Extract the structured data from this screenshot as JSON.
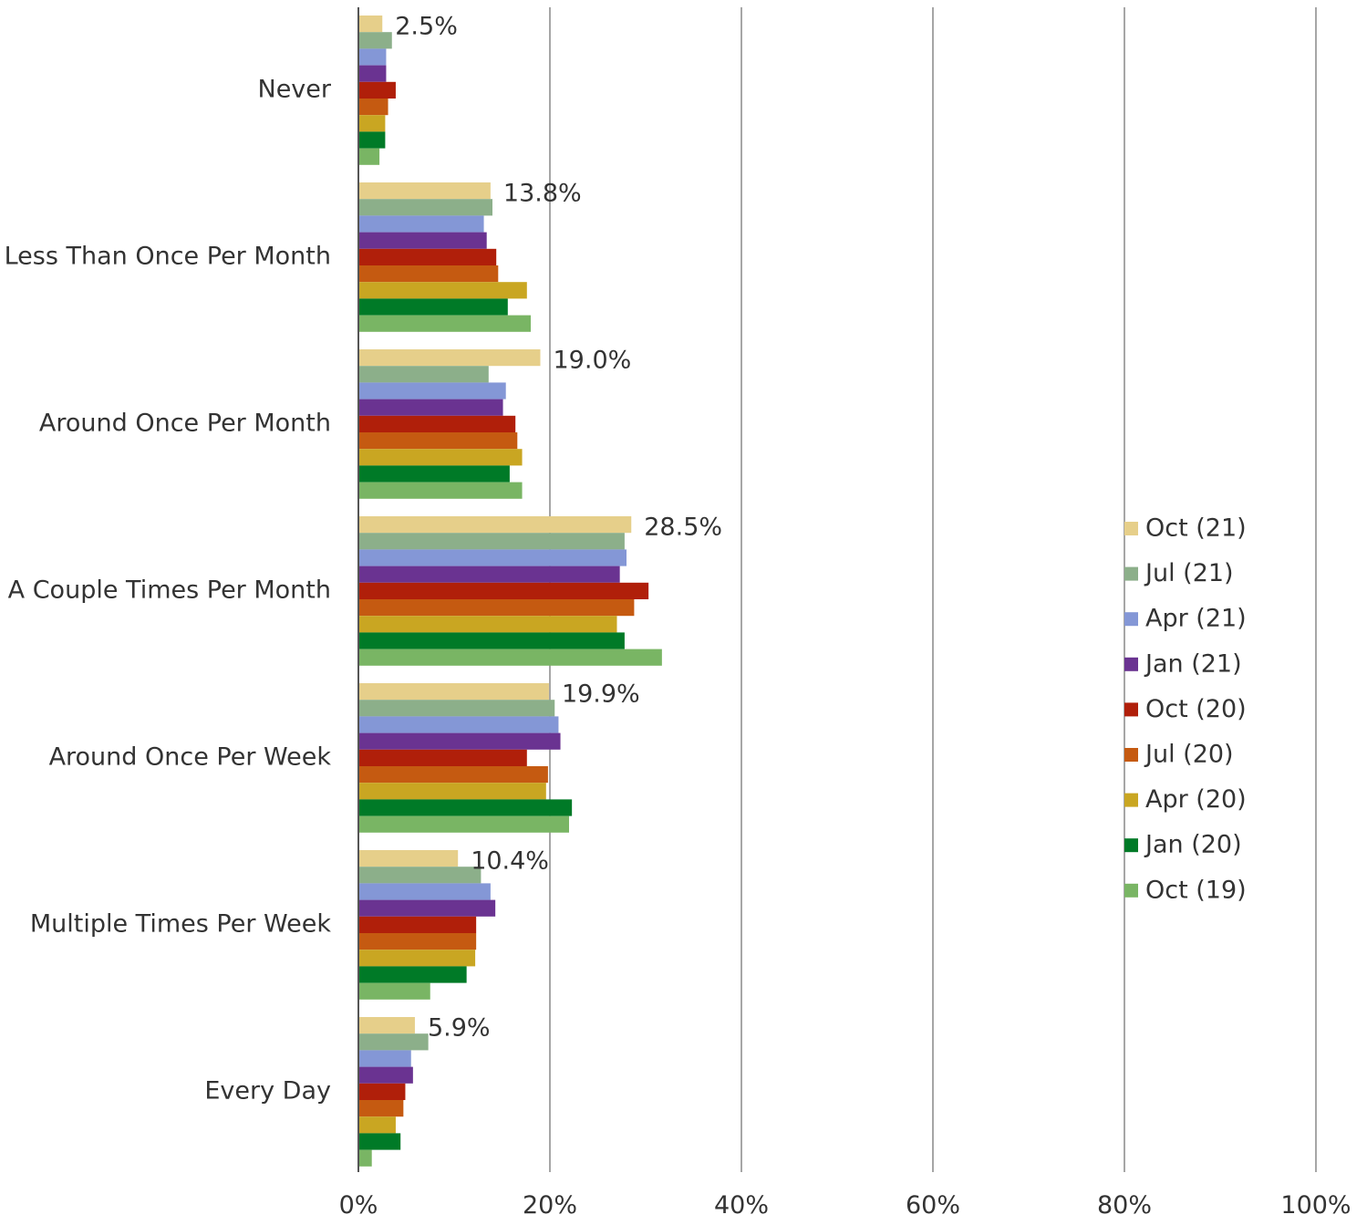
{
  "chart_data": {
    "type": "bar",
    "orientation": "horizontal",
    "categories": [
      "Never",
      "Less Than Once Per Month",
      "Around Once Per Month",
      "A Couple Times Per Month",
      "Around Once Per Week",
      "Multiple Times Per Week",
      "Every Day"
    ],
    "series": [
      {
        "name": "Oct (21)",
        "color": "#e6cf8a",
        "values": [
          2.5,
          13.8,
          19.0,
          28.5,
          19.9,
          10.4,
          5.9
        ]
      },
      {
        "name": "Jul (21)",
        "color": "#8caf8a",
        "values": [
          3.5,
          14.0,
          13.6,
          27.8,
          20.5,
          12.8,
          7.3
        ]
      },
      {
        "name": "Apr (21)",
        "color": "#8497d6",
        "values": [
          2.9,
          13.1,
          15.4,
          28.0,
          20.9,
          13.8,
          5.5
        ]
      },
      {
        "name": "Jan (21)",
        "color": "#6a3391",
        "values": [
          2.9,
          13.4,
          15.1,
          27.3,
          21.1,
          14.3,
          5.7
        ]
      },
      {
        "name": "Oct (20)",
        "color": "#b01f0a",
        "values": [
          3.9,
          14.4,
          16.4,
          30.3,
          17.6,
          12.3,
          4.9
        ]
      },
      {
        "name": "Jul (20)",
        "color": "#c55a11",
        "values": [
          3.1,
          14.6,
          16.6,
          28.8,
          19.8,
          12.3,
          4.7
        ]
      },
      {
        "name": "Apr (20)",
        "color": "#c9a622",
        "values": [
          2.8,
          17.6,
          17.1,
          27.0,
          19.6,
          12.2,
          3.9
        ]
      },
      {
        "name": "Jan (20)",
        "color": "#007a27",
        "values": [
          2.8,
          15.6,
          15.8,
          27.8,
          22.3,
          11.3,
          4.4
        ]
      },
      {
        "name": "Oct (19)",
        "color": "#79b564",
        "values": [
          2.2,
          18.0,
          17.1,
          31.7,
          22.0,
          7.5,
          1.4
        ]
      }
    ],
    "data_labels": [
      "2.5%",
      "13.8%",
      "19.0%",
      "28.5%",
      "19.9%",
      "10.4%",
      "5.9%"
    ],
    "x_ticks": [
      "0%",
      "20%",
      "40%",
      "60%",
      "80%",
      "100%"
    ],
    "xlim": [
      0,
      100
    ],
    "grid": "vertical",
    "legend_position": "right",
    "title": "",
    "xlabel": "",
    "ylabel": ""
  }
}
